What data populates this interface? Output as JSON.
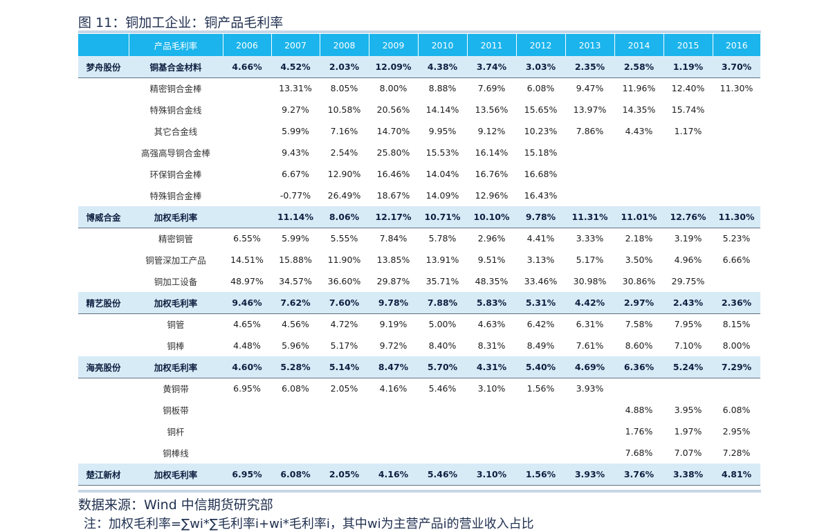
{
  "figure_title": "图 11：铜加工企业：铜产品毛利率",
  "table": {
    "header": [
      "",
      "产品毛利率",
      "2006",
      "2007",
      "2008",
      "2009",
      "2010",
      "2011",
      "2012",
      "2013",
      "2014",
      "2015",
      "2016"
    ],
    "rows": [
      {
        "type": "summary",
        "company": "梦舟股份",
        "product": "铜基合金材料",
        "values": [
          "4.66%",
          "4.52%",
          "2.03%",
          "12.09%",
          "4.38%",
          "3.74%",
          "3.03%",
          "2.35%",
          "2.58%",
          "1.19%",
          "3.70%"
        ]
      },
      {
        "type": "detail",
        "company": "",
        "product": "精密铜合金棒",
        "values": [
          "",
          "13.31%",
          "8.05%",
          "8.00%",
          "8.88%",
          "7.69%",
          "6.08%",
          "9.47%",
          "11.96%",
          "12.40%",
          "11.30%"
        ]
      },
      {
        "type": "detail",
        "company": "",
        "product": "特殊铜合金线",
        "values": [
          "",
          "9.27%",
          "10.58%",
          "20.56%",
          "14.14%",
          "13.56%",
          "15.65%",
          "13.97%",
          "14.35%",
          "15.74%",
          ""
        ]
      },
      {
        "type": "detail",
        "company": "",
        "product": "其它合金线",
        "values": [
          "",
          "5.99%",
          "7.16%",
          "14.70%",
          "9.95%",
          "9.12%",
          "10.23%",
          "7.86%",
          "4.43%",
          "1.17%",
          ""
        ]
      },
      {
        "type": "detail",
        "company": "",
        "product": "高强高导铜合金棒",
        "values": [
          "",
          "9.43%",
          "2.54%",
          "25.80%",
          "15.53%",
          "16.14%",
          "15.18%",
          "",
          "",
          "",
          ""
        ]
      },
      {
        "type": "detail",
        "company": "",
        "product": "环保铜合金棒",
        "values": [
          "",
          "6.67%",
          "12.90%",
          "16.46%",
          "14.04%",
          "16.76%",
          "16.68%",
          "",
          "",
          "",
          ""
        ]
      },
      {
        "type": "detail",
        "company": "",
        "product": "特殊铜合金棒",
        "values": [
          "",
          "-0.77%",
          "26.49%",
          "18.67%",
          "14.09%",
          "12.96%",
          "16.43%",
          "",
          "",
          "",
          ""
        ]
      },
      {
        "type": "summary",
        "company": "博威合金",
        "product": "加权毛利率",
        "values": [
          "",
          "11.14%",
          "8.06%",
          "12.17%",
          "10.71%",
          "10.10%",
          "9.78%",
          "11.31%",
          "11.01%",
          "12.76%",
          "11.30%"
        ]
      },
      {
        "type": "detail",
        "company": "",
        "product": "精密铜管",
        "values": [
          "6.55%",
          "5.99%",
          "5.55%",
          "7.84%",
          "5.78%",
          "2.96%",
          "4.41%",
          "3.33%",
          "2.18%",
          "3.19%",
          "5.23%"
        ]
      },
      {
        "type": "detail",
        "company": "",
        "product": "铜管深加工产品",
        "values": [
          "14.51%",
          "15.88%",
          "11.90%",
          "13.85%",
          "13.91%",
          "9.51%",
          "3.13%",
          "5.17%",
          "3.50%",
          "4.96%",
          "6.66%"
        ]
      },
      {
        "type": "detail",
        "company": "",
        "product": "铜加工设备",
        "values": [
          "48.97%",
          "34.57%",
          "36.60%",
          "29.87%",
          "35.71%",
          "48.35%",
          "33.46%",
          "30.98%",
          "30.86%",
          "29.75%",
          ""
        ]
      },
      {
        "type": "summary",
        "company": "精艺股份",
        "product": "加权毛利率",
        "values": [
          "9.46%",
          "7.62%",
          "7.60%",
          "9.78%",
          "7.88%",
          "5.83%",
          "5.31%",
          "4.42%",
          "2.97%",
          "2.43%",
          "2.36%"
        ]
      },
      {
        "type": "detail",
        "company": "",
        "product": "铜管",
        "values": [
          "4.65%",
          "4.56%",
          "4.72%",
          "9.19%",
          "5.00%",
          "4.63%",
          "6.42%",
          "6.31%",
          "7.58%",
          "7.95%",
          "8.15%"
        ]
      },
      {
        "type": "detail",
        "company": "",
        "product": "铜棒",
        "values": [
          "4.48%",
          "5.96%",
          "5.17%",
          "9.72%",
          "8.40%",
          "8.31%",
          "8.49%",
          "7.61%",
          "8.60%",
          "7.10%",
          "8.00%"
        ]
      },
      {
        "type": "summary",
        "company": "海亮股份",
        "product": "加权毛利率",
        "values": [
          "4.60%",
          "5.28%",
          "5.14%",
          "8.47%",
          "5.70%",
          "4.31%",
          "5.40%",
          "4.69%",
          "6.36%",
          "5.24%",
          "7.29%"
        ]
      },
      {
        "type": "detail",
        "company": "",
        "product": "黄铜带",
        "values": [
          "6.95%",
          "6.08%",
          "2.05%",
          "4.16%",
          "5.46%",
          "3.10%",
          "1.56%",
          "3.93%",
          "",
          "",
          ""
        ]
      },
      {
        "type": "detail",
        "company": "",
        "product": "铜板带",
        "values": [
          "",
          "",
          "",
          "",
          "",
          "",
          "",
          "",
          "4.88%",
          "3.95%",
          "6.08%"
        ]
      },
      {
        "type": "detail",
        "company": "",
        "product": "铜杆",
        "values": [
          "",
          "",
          "",
          "",
          "",
          "",
          "",
          "",
          "1.76%",
          "1.97%",
          "2.95%"
        ]
      },
      {
        "type": "detail",
        "company": "",
        "product": "铜棒线",
        "values": [
          "",
          "",
          "",
          "",
          "",
          "",
          "",
          "",
          "7.68%",
          "7.07%",
          "7.28%"
        ]
      },
      {
        "type": "summary",
        "company": "楚江新材",
        "product": "加权毛利率",
        "values": [
          "6.95%",
          "6.08%",
          "2.05%",
          "4.16%",
          "5.46%",
          "3.10%",
          "1.56%",
          "3.93%",
          "3.76%",
          "3.38%",
          "4.81%"
        ]
      }
    ]
  },
  "source": "数据来源：Wind  中信期货研究部",
  "note": "注：加权毛利率=∑wi*∑毛利率i+wi*毛利率i，其中wi为主营产品i的营业收入占比"
}
